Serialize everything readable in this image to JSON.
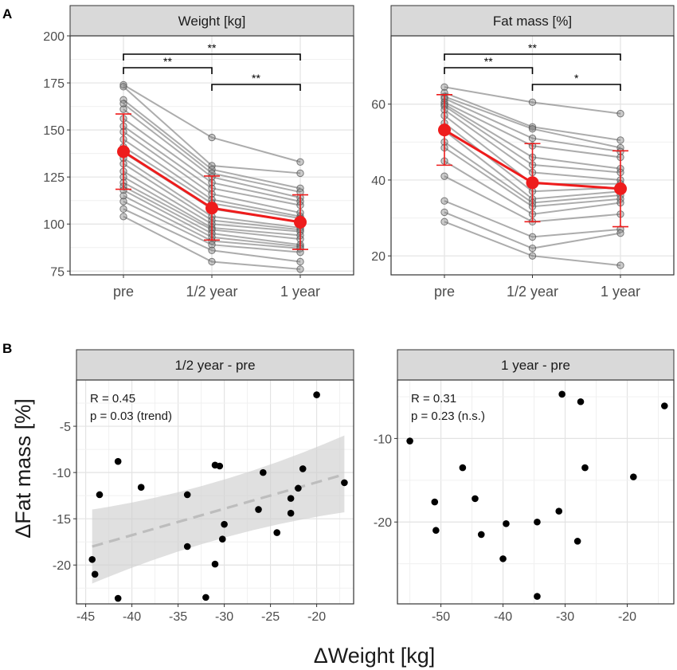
{
  "figure": {
    "panel_a_letter": "A",
    "panel_b_letter": "B"
  },
  "chart_data": [
    {
      "type": "line",
      "id": "weight",
      "title": "Weight [kg]",
      "xlabel": "",
      "ylabel": "",
      "categories": [
        "pre",
        "1/2 year",
        "1 year"
      ],
      "ylim": [
        73,
        200
      ],
      "yticks": [
        75,
        100,
        125,
        150,
        175,
        200
      ],
      "grid": true,
      "individuals": [
        [
          174,
          146,
          133
        ],
        [
          173,
          131,
          127
        ],
        [
          166,
          129,
          119
        ],
        [
          164,
          127,
          117
        ],
        [
          161,
          125,
          114
        ],
        [
          156,
          122,
          112
        ],
        [
          152,
          119,
          110
        ],
        [
          149,
          116,
          106
        ],
        [
          145,
          113,
          104
        ],
        [
          141,
          111,
          103
        ],
        [
          138,
          108,
          101
        ],
        [
          135,
          104,
          98
        ],
        [
          132,
          102,
          97
        ],
        [
          128,
          100,
          96
        ],
        [
          125,
          98,
          94
        ],
        [
          122,
          97,
          92
        ],
        [
          120,
          95,
          89
        ],
        [
          118,
          93,
          88
        ],
        [
          115,
          91,
          87
        ],
        [
          112,
          89,
          85
        ],
        [
          108,
          86,
          80
        ],
        [
          104,
          80,
          76
        ]
      ],
      "mean": [
        138.5,
        108.5,
        101
      ],
      "sd": [
        20,
        17,
        14.5
      ],
      "significance": [
        {
          "from": "pre",
          "to": "1/2 year",
          "label": "**"
        },
        {
          "from": "1/2 year",
          "to": "1 year",
          "label": "**"
        },
        {
          "from": "pre",
          "to": "1 year",
          "label": "**"
        }
      ]
    },
    {
      "type": "line",
      "id": "fatmass",
      "title": "Fat mass [%]",
      "xlabel": "",
      "ylabel": "",
      "categories": [
        "pre",
        "1/2 year",
        "1 year"
      ],
      "ylim": [
        15,
        78
      ],
      "yticks": [
        20,
        40,
        60
      ],
      "grid": true,
      "individuals": [
        [
          64.5,
          60.5,
          57.5
        ],
        [
          63,
          54,
          50.5
        ],
        [
          62,
          53.5,
          48.5
        ],
        [
          61.5,
          51,
          47.5
        ],
        [
          60.5,
          49,
          46
        ],
        [
          60,
          46,
          43
        ],
        [
          59.5,
          44,
          42
        ],
        [
          58.5,
          42,
          40
        ],
        [
          57,
          39,
          39
        ],
        [
          55,
          37,
          38
        ],
        [
          53,
          35,
          37
        ],
        [
          50,
          34,
          36
        ],
        [
          48.5,
          33,
          35
        ],
        [
          45,
          31,
          34
        ],
        [
          41,
          29,
          31
        ],
        [
          34.5,
          25,
          27
        ],
        [
          31.5,
          22,
          26
        ],
        [
          29,
          20,
          17.5
        ]
      ],
      "mean": [
        53.2,
        39.3,
        37.7
      ],
      "sd": [
        9.3,
        10.3,
        10
      ],
      "significance": [
        {
          "from": "pre",
          "to": "1/2 year",
          "label": "**"
        },
        {
          "from": "1/2 year",
          "to": "1 year",
          "label": "*"
        },
        {
          "from": "pre",
          "to": "1 year",
          "label": "**"
        }
      ]
    },
    {
      "type": "scatter",
      "id": "half-year",
      "title": "1/2 year - pre",
      "xlabel": "ΔWeight [kg]",
      "ylabel": "ΔFat mass [%]",
      "xlim": [
        -46,
        -16
      ],
      "ylim": [
        -24.2,
        0
      ],
      "xticks": [
        -45,
        -40,
        -35,
        -30,
        -25,
        -20
      ],
      "yticks": [
        -20,
        -15,
        -10,
        -5
      ],
      "annotation": [
        "R = 0.45",
        "p = 0.03 (trend)"
      ],
      "regression": {
        "x0": -44.3,
        "y0": -18,
        "x1": -17,
        "y1": -10.2,
        "band_lo0": -22,
        "band_hi0": -14,
        "band_lo1": -14.3,
        "band_hi1": -6
      },
      "points": [
        [
          -20,
          -1.6
        ],
        [
          -17,
          -11.1
        ],
        [
          -41.5,
          -8.8
        ],
        [
          -43.5,
          -12.4
        ],
        [
          -39,
          -11.6
        ],
        [
          -31,
          -9.2
        ],
        [
          -30.5,
          -9.3
        ],
        [
          -34,
          -12.4
        ],
        [
          -25.8,
          -10
        ],
        [
          -21.5,
          -9.6
        ],
        [
          -22,
          -11.7
        ],
        [
          -22.8,
          -12.8
        ],
        [
          -26.3,
          -14
        ],
        [
          -22.8,
          -14.4
        ],
        [
          -30,
          -15.6
        ],
        [
          -24.3,
          -16.5
        ],
        [
          -30.2,
          -17.2
        ],
        [
          -34,
          -18
        ],
        [
          -44.3,
          -19.4
        ],
        [
          -31,
          -19.9
        ],
        [
          -44,
          -21
        ],
        [
          -41.5,
          -23.6
        ],
        [
          -32,
          -23.5
        ]
      ]
    },
    {
      "type": "scatter",
      "id": "one-year",
      "title": "1 year - pre",
      "xlabel": "ΔWeight [kg]",
      "ylabel": "ΔFat mass [%]",
      "xlim": [
        -57,
        -12.5
      ],
      "ylim": [
        -29.8,
        -3
      ],
      "xticks": [
        -50,
        -40,
        -30,
        -20
      ],
      "yticks": [
        -20,
        -10
      ],
      "annotation": [
        "R = 0.31",
        "p = 0.23 (n.s.)"
      ],
      "points": [
        [
          -55,
          -10.3
        ],
        [
          -51,
          -17.6
        ],
        [
          -50.8,
          -21
        ],
        [
          -46.5,
          -13.5
        ],
        [
          -44.5,
          -17.2
        ],
        [
          -43.5,
          -21.5
        ],
        [
          -40,
          -24.4
        ],
        [
          -39.5,
          -20.2
        ],
        [
          -34.5,
          -20
        ],
        [
          -34.5,
          -28.9
        ],
        [
          -30.5,
          -4.7
        ],
        [
          -27.5,
          -5.6
        ],
        [
          -31,
          -18.7
        ],
        [
          -28,
          -22.3
        ],
        [
          -26.8,
          -13.5
        ],
        [
          -19,
          -14.6
        ],
        [
          -14,
          -6.1
        ]
      ]
    }
  ]
}
